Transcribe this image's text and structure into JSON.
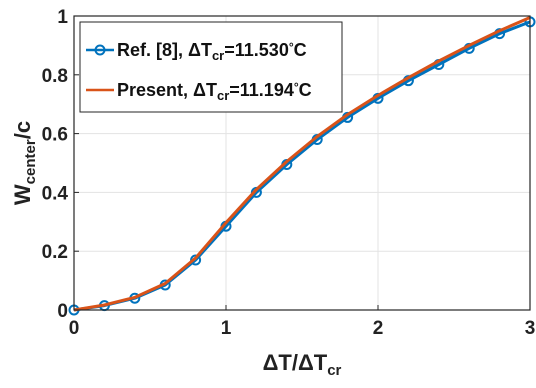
{
  "chart_data": {
    "type": "line",
    "xlabel": {
      "main": "ΔT/ΔT",
      "sub": "cr"
    },
    "ylabel": {
      "main": "W",
      "sub": "center",
      "tail": "/c"
    },
    "xlim": [
      0,
      3
    ],
    "ylim": [
      0,
      1
    ],
    "xticks": [
      "0",
      "1",
      "2",
      "3"
    ],
    "yticks": [
      "0",
      "0.2",
      "0.4",
      "0.6",
      "0.8",
      "1"
    ],
    "grid": true,
    "legend_position": "top-left",
    "series": [
      {
        "name": "Ref. [8], ΔT_cr=11.530°C",
        "legend": {
          "prefix": "Ref. [8], ΔT",
          "sub": "cr",
          "value": "=11.530",
          "deg": "°",
          "unit": "C"
        },
        "color": "#0072BD",
        "marker": "circle",
        "x": [
          0,
          0.2,
          0.4,
          0.6,
          0.8,
          1.0,
          1.2,
          1.4,
          1.6,
          1.8,
          2.0,
          2.2,
          2.4,
          2.6,
          2.8,
          3.0
        ],
        "y": [
          0.0,
          0.015,
          0.04,
          0.085,
          0.17,
          0.285,
          0.4,
          0.495,
          0.58,
          0.655,
          0.72,
          0.78,
          0.835,
          0.89,
          0.94,
          0.98
        ]
      },
      {
        "name": "Present, ΔT_cr=11.194°C",
        "legend": {
          "prefix": "Present, ΔT",
          "sub": "cr",
          "value": "=11.194",
          "deg": "°",
          "unit": "C"
        },
        "color": "#D95319",
        "marker": "none",
        "x": [
          0,
          0.2,
          0.4,
          0.6,
          0.8,
          1.0,
          1.2,
          1.4,
          1.6,
          1.8,
          2.0,
          2.2,
          2.4,
          2.6,
          2.8,
          3.0
        ],
        "y": [
          0.0,
          0.017,
          0.043,
          0.09,
          0.177,
          0.297,
          0.41,
          0.505,
          0.59,
          0.665,
          0.73,
          0.79,
          0.847,
          0.9,
          0.95,
          0.995
        ]
      }
    ]
  }
}
